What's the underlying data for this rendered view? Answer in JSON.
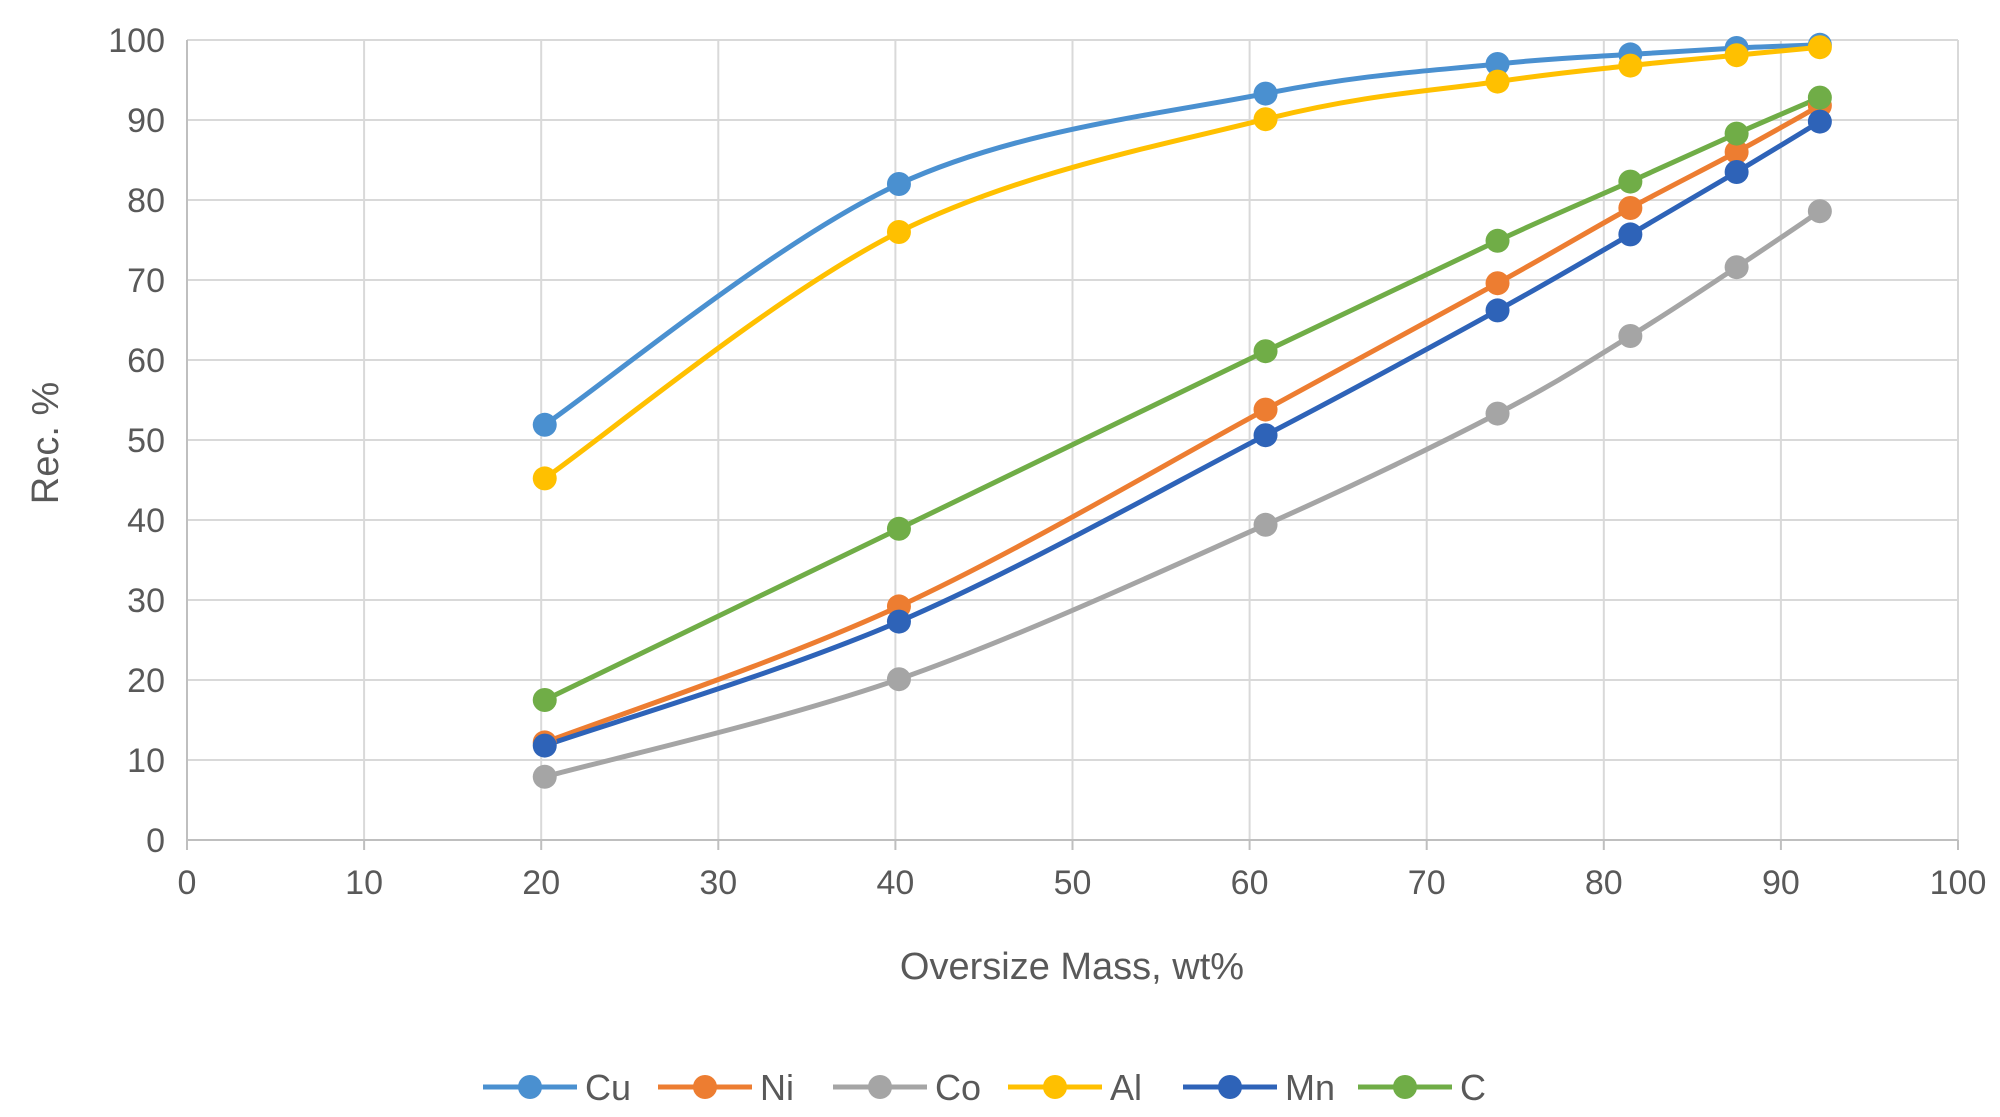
{
  "chart_data": {
    "type": "line",
    "title": "",
    "xlabel": "Oversize Mass, wt%",
    "ylabel": "Rec. %",
    "xlim": [
      0,
      100
    ],
    "ylim": [
      0,
      100
    ],
    "x_ticks": [
      0,
      10,
      20,
      30,
      40,
      50,
      60,
      70,
      80,
      90,
      100
    ],
    "y_ticks": [
      0,
      10,
      20,
      30,
      40,
      50,
      60,
      70,
      80,
      90,
      100
    ],
    "grid": true,
    "legend_position": "bottom",
    "smooth": true,
    "x": [
      20.2,
      40.2,
      60.9,
      74.0,
      81.5,
      87.5,
      92.2
    ],
    "series": [
      {
        "name": "Cu",
        "color": "#4a90d0",
        "values": [
          51.9,
          82.0,
          93.3,
          97.0,
          98.2,
          99.0,
          99.4
        ]
      },
      {
        "name": "Ni",
        "color": "#ed7d31",
        "values": [
          12.2,
          29.2,
          53.8,
          69.6,
          79.0,
          86.0,
          91.8
        ]
      },
      {
        "name": "Co",
        "color": "#a5a5a5",
        "values": [
          7.9,
          20.1,
          39.4,
          53.3,
          63.0,
          71.6,
          78.6
        ]
      },
      {
        "name": "Al",
        "color": "#ffc000",
        "values": [
          45.2,
          76.0,
          90.1,
          94.8,
          96.8,
          98.1,
          99.1
        ]
      },
      {
        "name": "Mn",
        "color": "#2e63b8",
        "values": [
          11.8,
          27.3,
          50.6,
          66.2,
          75.7,
          83.5,
          89.8
        ]
      },
      {
        "name": "C",
        "color": "#70ad47",
        "values": [
          17.5,
          38.9,
          61.1,
          74.9,
          82.3,
          88.3,
          92.8
        ]
      }
    ]
  }
}
